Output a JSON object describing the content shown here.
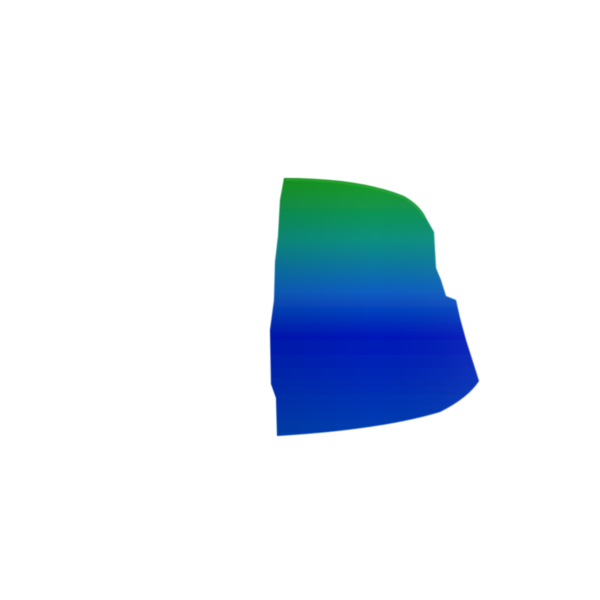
{
  "scene": {
    "background": "#ffffff",
    "shape": "3d-surface-patch",
    "colors": {
      "top": "#1a9a1a",
      "upper_mid": "#0a8f80",
      "mid": "#0a5ec0",
      "band": "#0018b8",
      "bottom": "#0040b0"
    }
  }
}
